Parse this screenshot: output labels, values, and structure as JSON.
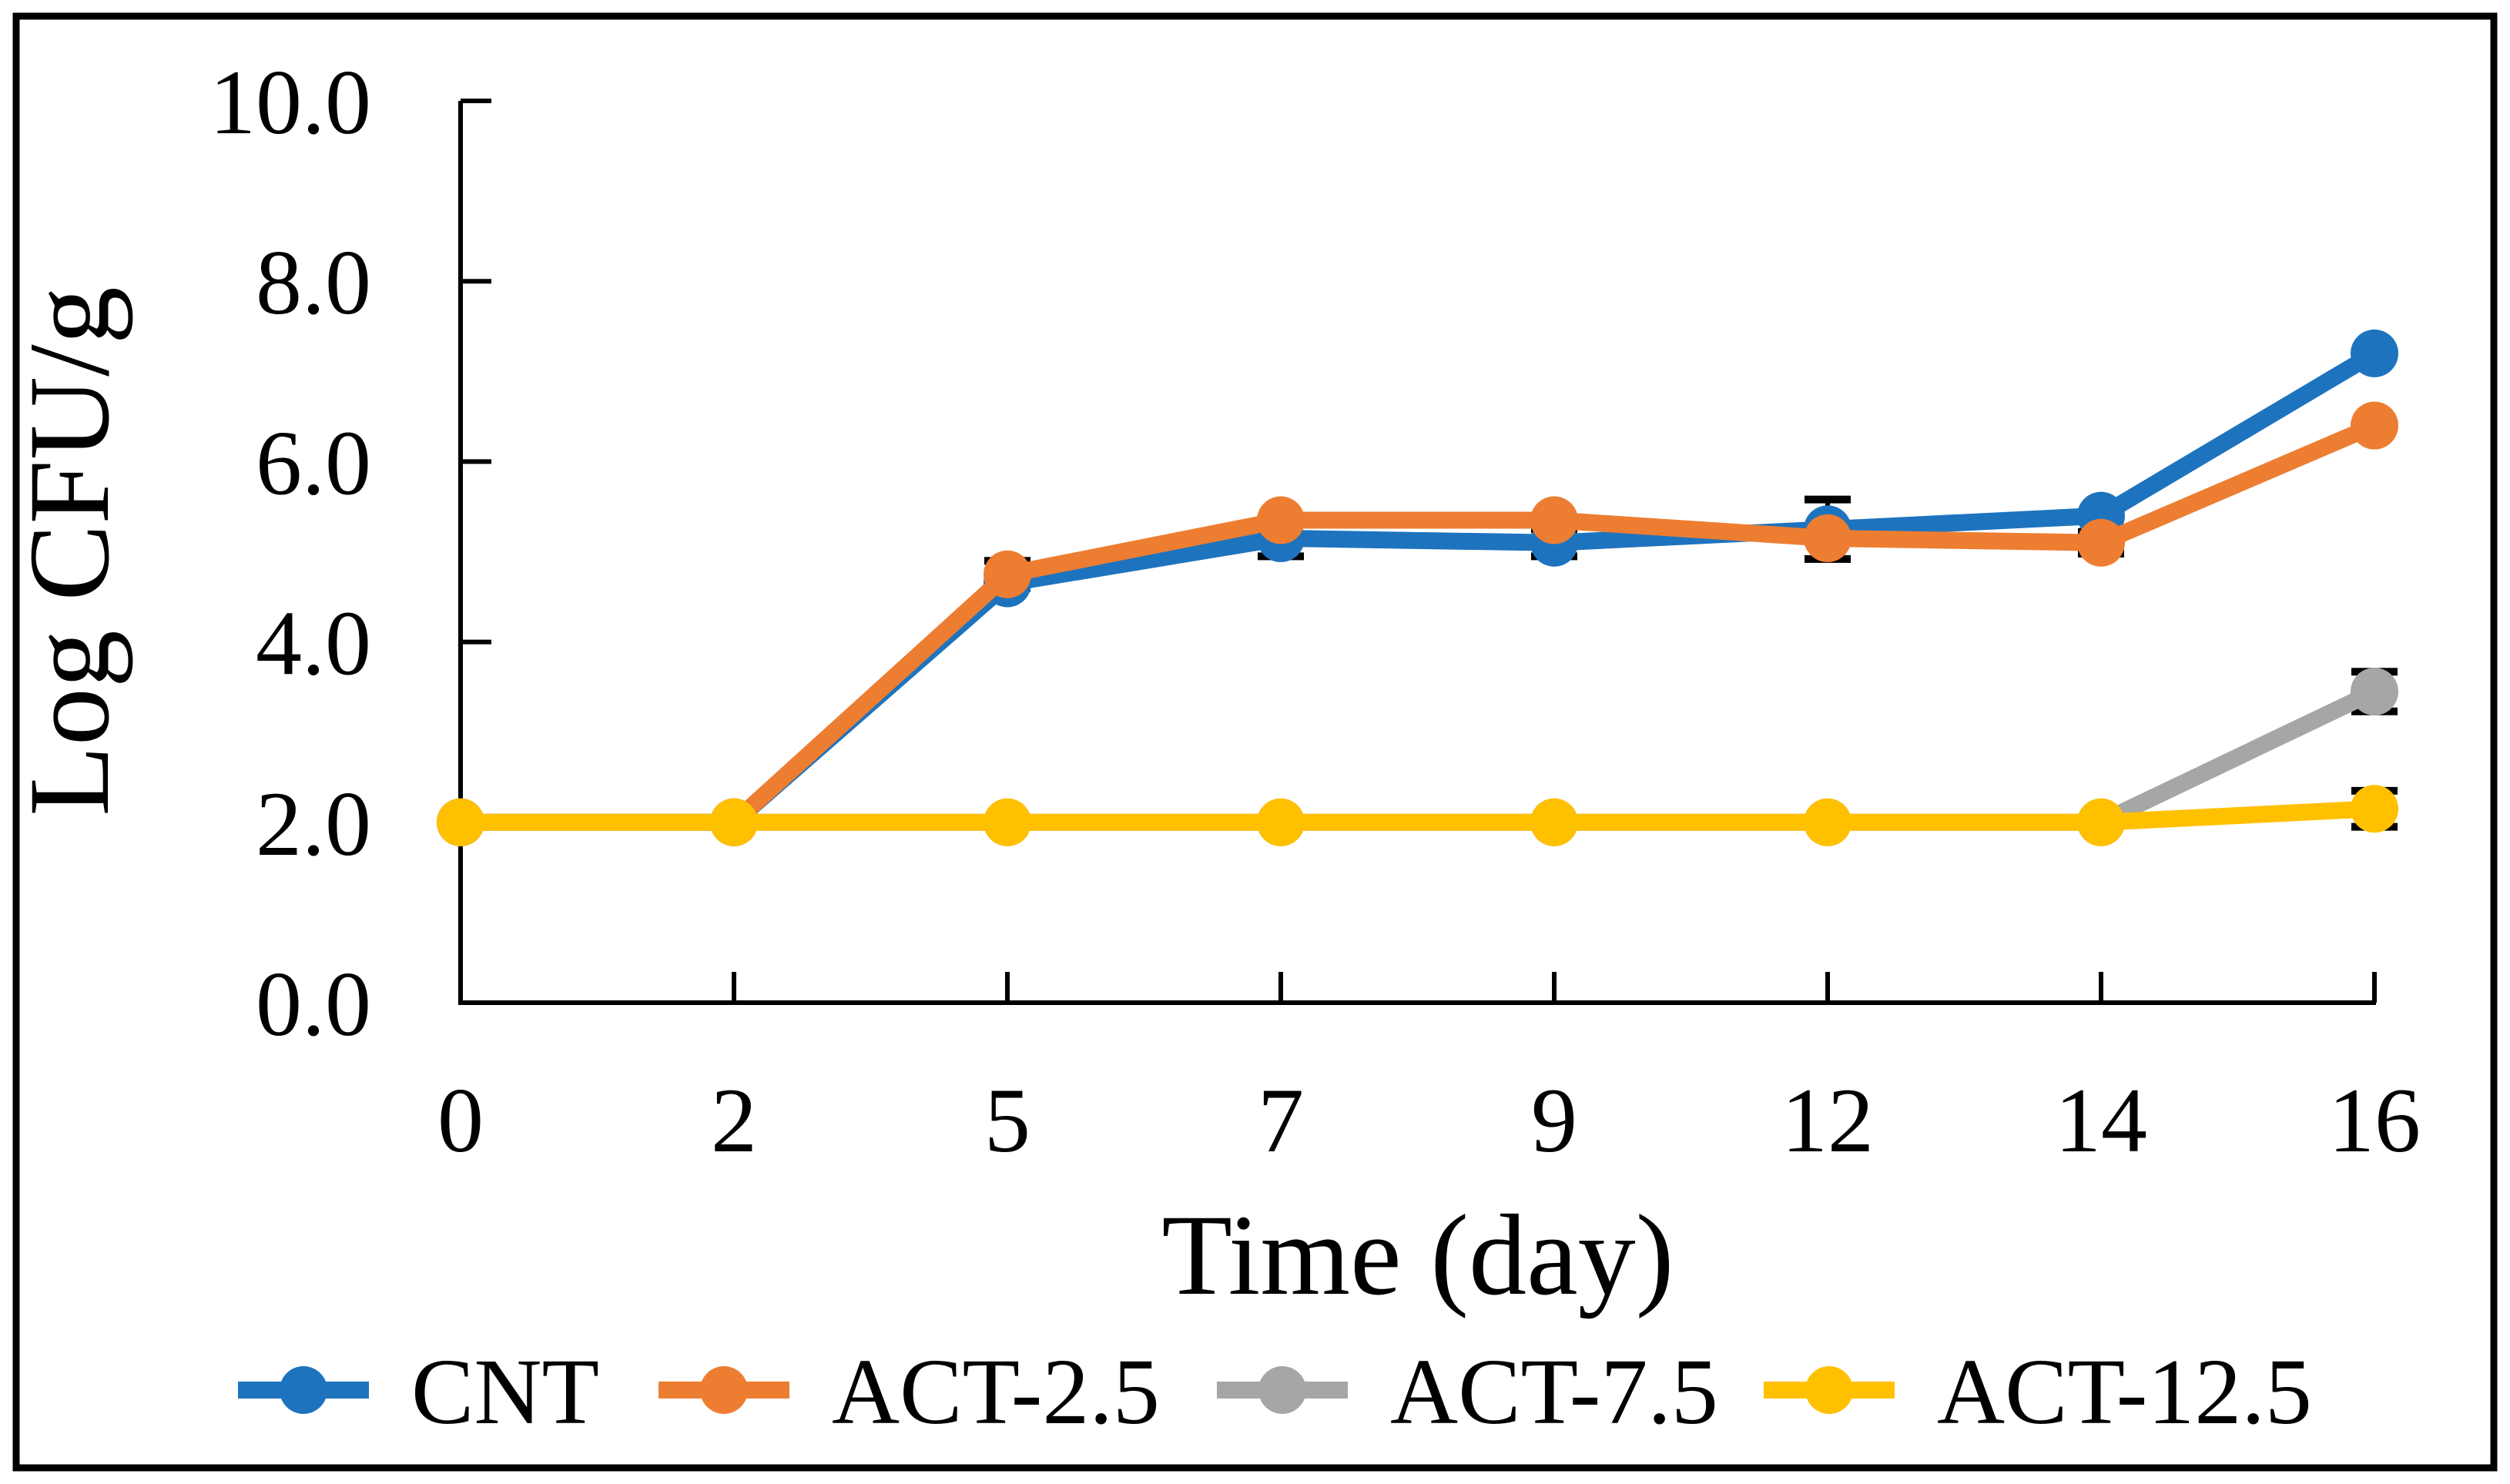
{
  "figure": {
    "border_color": "#000000",
    "background": "#ffffff",
    "axis_color": "#000000",
    "error_bar_color": "#000000"
  },
  "chart_data": {
    "type": "line",
    "title": "",
    "xlabel": "Time (day)",
    "ylabel": "Log CFU/g",
    "categories": [
      "0",
      "2",
      "5",
      "7",
      "9",
      "12",
      "14",
      "16"
    ],
    "y_ticks": [
      "0.0",
      "2.0",
      "4.0",
      "6.0",
      "8.0",
      "10.0"
    ],
    "y_tick_values": [
      0,
      2,
      4,
      6,
      8,
      10
    ],
    "ylim": [
      0,
      10
    ],
    "grid": false,
    "legend_position": "bottom",
    "marker": "circle",
    "series": [
      {
        "name": "CNT",
        "color": "#1E73BE",
        "values": [
          2.0,
          2.0,
          4.65,
          5.15,
          5.1,
          5.25,
          5.4,
          7.2
        ]
      },
      {
        "name": "ACT-2.5",
        "color": "#ED7D31",
        "values": [
          2.0,
          2.0,
          4.75,
          5.35,
          5.35,
          5.15,
          5.1,
          6.4
        ]
      },
      {
        "name": "ACT-7.5",
        "color": "#A6A6A6",
        "values": [
          2.0,
          2.0,
          2.0,
          2.0,
          2.0,
          2.0,
          2.0,
          3.45
        ]
      },
      {
        "name": "ACT-12.5",
        "color": "#FFC000",
        "values": [
          2.0,
          2.0,
          2.0,
          2.0,
          2.0,
          2.0,
          2.0,
          2.15
        ]
      }
    ],
    "error_bars": [
      {
        "series": "ACT-2.5",
        "category": "5",
        "category_index": 2,
        "value": 4.75,
        "plus_minus": 0.15
      },
      {
        "series": "CNT",
        "category": "7",
        "category_index": 3,
        "value": 5.15,
        "plus_minus": 0.2
      },
      {
        "series": "CNT",
        "category": "9",
        "category_index": 4,
        "value": 5.1,
        "plus_minus": 0.15
      },
      {
        "series": "CNT",
        "category": "12",
        "category_index": 5,
        "value": 5.25,
        "plus_minus": 0.33
      },
      {
        "series": "ACT-2.5",
        "category": "14",
        "category_index": 6,
        "value": 5.1,
        "plus_minus": 0.12
      },
      {
        "series": "ACT-7.5",
        "category": "16",
        "category_index": 7,
        "value": 3.45,
        "plus_minus": 0.22
      },
      {
        "series": "ACT-12.5",
        "category": "16",
        "category_index": 7,
        "value": 2.15,
        "plus_minus": 0.2
      }
    ]
  }
}
